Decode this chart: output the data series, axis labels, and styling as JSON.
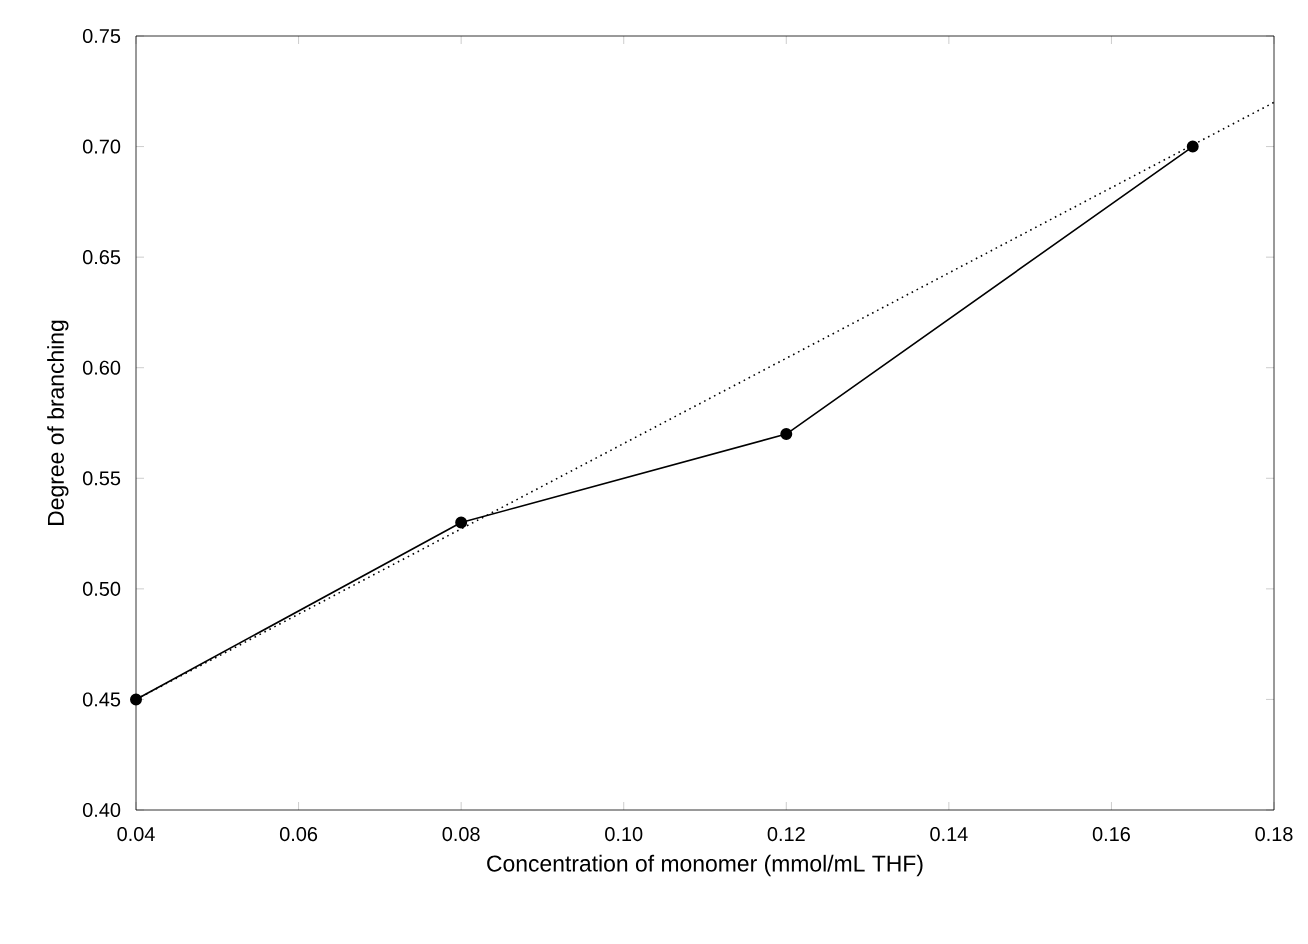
{
  "chart_data": {
    "type": "line",
    "xlabel": "Concentration of monomer (mmol/mL THF)",
    "ylabel": "Degree of  branching",
    "xlim": [
      0.04,
      0.18
    ],
    "ylim": [
      0.4,
      0.75
    ],
    "xticks": [
      {
        "value": 0.04,
        "label": "0.04"
      },
      {
        "value": 0.06,
        "label": "0.06"
      },
      {
        "value": 0.08,
        "label": "0.08"
      },
      {
        "value": 0.1,
        "label": "0.10"
      },
      {
        "value": 0.12,
        "label": "0.12"
      },
      {
        "value": 0.14,
        "label": "0.14"
      },
      {
        "value": 0.16,
        "label": "0.16"
      },
      {
        "value": 0.18,
        "label": "0.18"
      }
    ],
    "yticks": [
      {
        "value": 0.4,
        "label": "0.40"
      },
      {
        "value": 0.45,
        "label": "0.45"
      },
      {
        "value": 0.5,
        "label": "0.50"
      },
      {
        "value": 0.55,
        "label": "0.55"
      },
      {
        "value": 0.6,
        "label": "0.60"
      },
      {
        "value": 0.65,
        "label": "0.65"
      },
      {
        "value": 0.7,
        "label": "0.70"
      },
      {
        "value": 0.75,
        "label": "0.75"
      }
    ],
    "grid": false,
    "series": [
      {
        "color": "#000000",
        "marker": "circle",
        "line_style": "solid",
        "x": [
          0.04,
          0.08,
          0.12,
          0.17
        ],
        "values": [
          0.45,
          0.53,
          0.57,
          0.7
        ]
      },
      {
        "color": "#000000",
        "marker": "none",
        "line_style": "dotted",
        "x": [
          0.04,
          0.18
        ],
        "values": [
          0.45,
          0.72
        ]
      }
    ]
  }
}
